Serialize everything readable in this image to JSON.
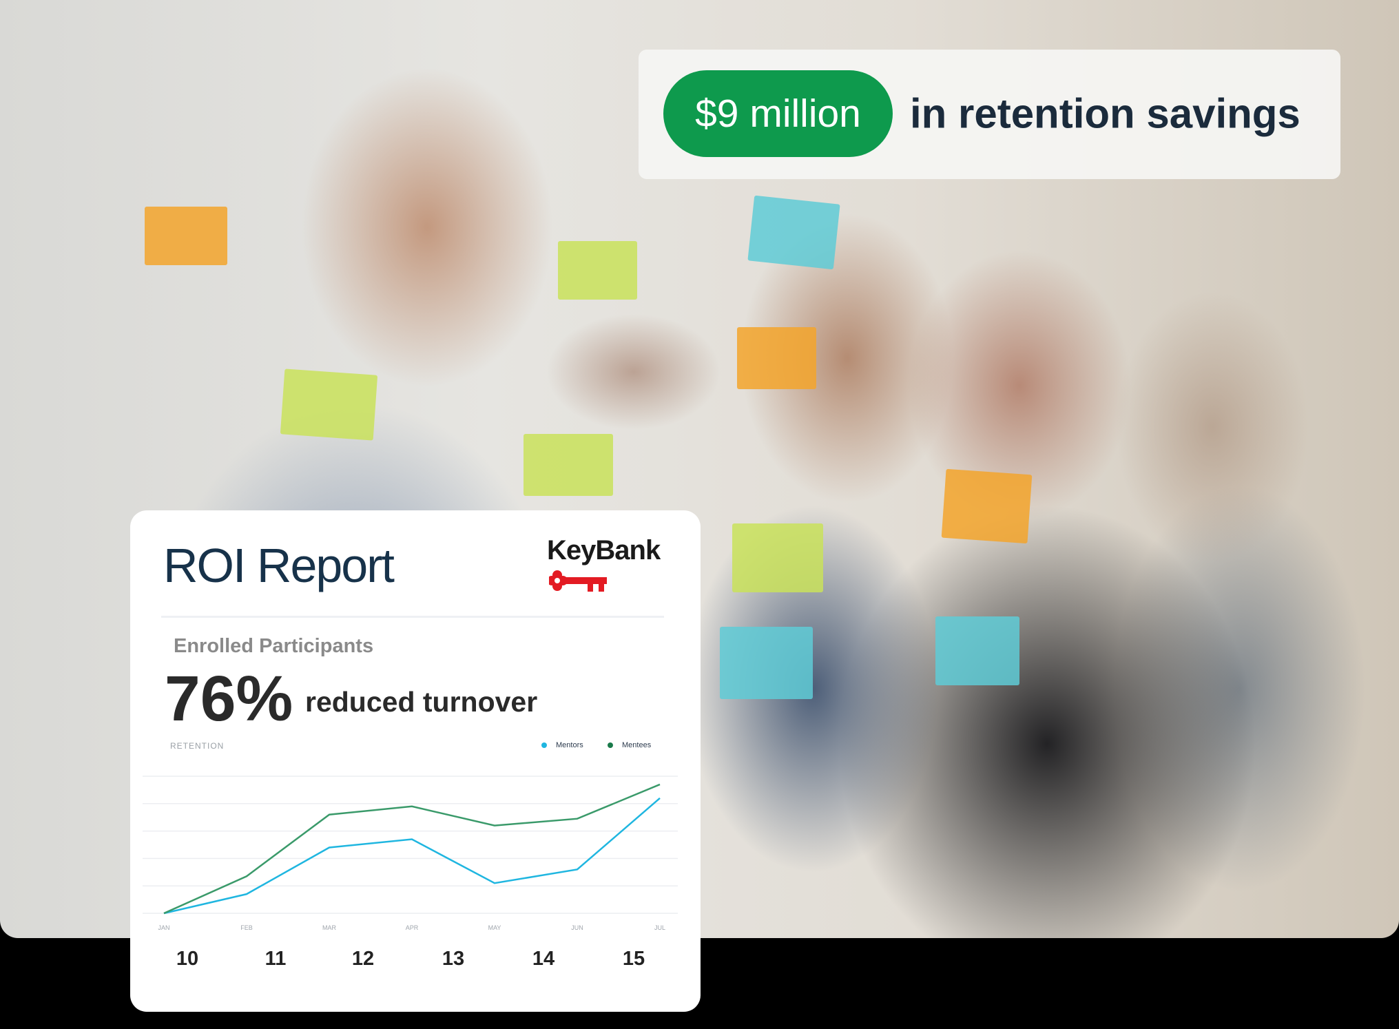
{
  "banner": {
    "highlight": "$9 million",
    "text": "in retention savings",
    "highlight_color": "#0e9a4d"
  },
  "card": {
    "title": "ROI Report",
    "logo": {
      "text": "KeyBank",
      "icon": "key-icon",
      "color": "#e31b23"
    },
    "subtitle": "Enrolled Participants",
    "stat_value": "76%",
    "stat_label": "reduced turnover",
    "numbers": [
      "10",
      "11",
      "12",
      "13",
      "14",
      "15"
    ]
  },
  "chart_data": {
    "type": "line",
    "title": "RETENTION",
    "categories": [
      "JAN",
      "FEB",
      "MAR",
      "APR",
      "MAY",
      "JUN",
      "JUL"
    ],
    "series": [
      {
        "name": "Mentors",
        "color": "#1fb6e0",
        "values": [
          0,
          0.7,
          2.4,
          2.7,
          1.1,
          1.6,
          4.2
        ]
      },
      {
        "name": "Mentees",
        "color": "#3a9a6a",
        "values": [
          0,
          1.35,
          3.6,
          3.9,
          3.2,
          3.45,
          4.7
        ]
      }
    ],
    "ylim": [
      0,
      5
    ],
    "grid": true,
    "legend": "top-right"
  }
}
